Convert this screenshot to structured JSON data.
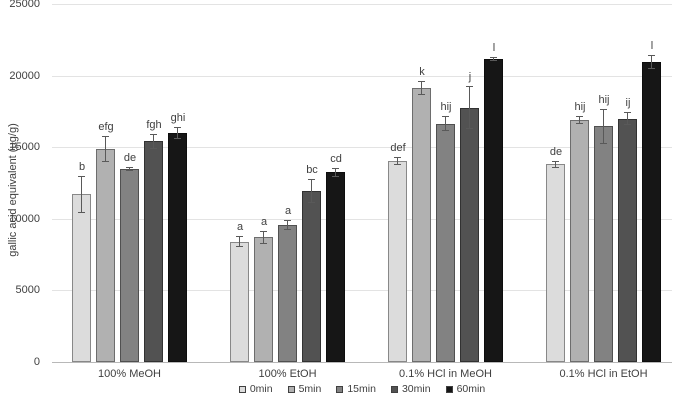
{
  "chart_data": {
    "type": "bar",
    "title": "",
    "ylabel": "gallic acid equivalent (µg/g)",
    "xlabel": "",
    "ylim": [
      0,
      25000
    ],
    "ytick_step": 5000,
    "yticks": [
      "0",
      "5000",
      "10000",
      "15000",
      "20000",
      "25000"
    ],
    "categories": [
      "100% MeOH",
      "100% EtOH",
      "0.1% HCl in MeOH",
      "0.1% HCl in EtOH"
    ],
    "series": [
      {
        "name": "0min",
        "color": "#dcdcdc",
        "values": [
          11700,
          8400,
          14050,
          13800
        ],
        "errors": [
          1300,
          400,
          300,
          250
        ],
        "letters": [
          "b",
          "a",
          "def",
          "de"
        ]
      },
      {
        "name": "5min",
        "color": "#b1b1b1",
        "values": [
          14900,
          8700,
          19150,
          16900
        ],
        "errors": [
          900,
          450,
          500,
          250
        ],
        "letters": [
          "efg",
          "a",
          "k",
          "hij"
        ]
      },
      {
        "name": "15min",
        "color": "#828282",
        "values": [
          13500,
          9550,
          16650,
          16450
        ],
        "errors": [
          150,
          350,
          500,
          1200
        ],
        "letters": [
          "de",
          "a",
          "hij",
          "hij"
        ]
      },
      {
        "name": "30min",
        "color": "#525252",
        "values": [
          15400,
          11950,
          17750,
          17000
        ],
        "errors": [
          550,
          850,
          1500,
          450
        ],
        "letters": [
          "fgh",
          "bc",
          "j",
          "ij"
        ]
      },
      {
        "name": "60min",
        "color": "#161616",
        "values": [
          16000,
          13250,
          21150,
          20950
        ],
        "errors": [
          400,
          300,
          150,
          500
        ],
        "letters": [
          "ghi",
          "cd",
          "l",
          "l"
        ]
      }
    ],
    "legend_position": "bottom",
    "grid": true,
    "colors": {
      "gridline": "#e3e3e3",
      "axis_line": "#b8b8b8",
      "error_bar": "#595959",
      "text": "#404040",
      "background": "#ffffff"
    }
  }
}
